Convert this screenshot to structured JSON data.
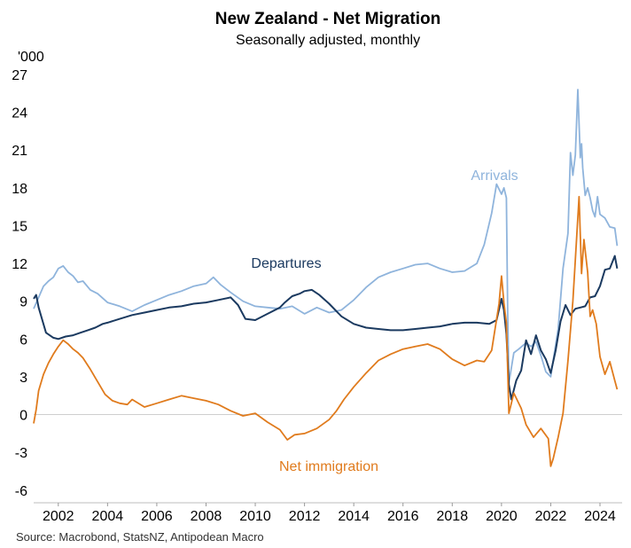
{
  "chart_data": {
    "type": "line",
    "title": "New Zealand - Net Migration",
    "subtitle": "Seasonally adjusted, monthly",
    "ylabel": "'000",
    "source": "Source: Macrobond, StatsNZ, Antipodean Macro",
    "ylim": [
      -7,
      27
    ],
    "yticks": [
      27,
      24,
      21,
      18,
      15,
      12,
      9,
      6,
      3,
      0,
      -3,
      -6
    ],
    "xlim": [
      2001.0,
      2024.9
    ],
    "xticks": [
      2002,
      2004,
      2006,
      2008,
      2010,
      2012,
      2014,
      2016,
      2018,
      2020,
      2022,
      2024
    ],
    "xtick_labels": [
      "2002",
      "2004",
      "2006",
      "2008",
      "2010",
      "2012",
      "2014",
      "2016",
      "2018",
      "2020",
      "2022",
      "2024"
    ],
    "grid": false,
    "zero_line": true,
    "series": [
      {
        "name": "Arrivals",
        "color": "#8fb4dc",
        "x": [
          2001.0,
          2001.2,
          2001.4,
          2001.6,
          2001.8,
          2002.0,
          2002.2,
          2002.4,
          2002.6,
          2002.8,
          2003.0,
          2003.3,
          2003.6,
          2004.0,
          2004.5,
          2005.0,
          2005.5,
          2006.0,
          2006.5,
          2007.0,
          2007.5,
          2008.0,
          2008.3,
          2008.6,
          2009.0,
          2009.5,
          2010.0,
          2010.5,
          2011.0,
          2011.5,
          2012.0,
          2012.5,
          2013.0,
          2013.5,
          2014.0,
          2014.5,
          2015.0,
          2015.5,
          2016.0,
          2016.5,
          2017.0,
          2017.5,
          2018.0,
          2018.5,
          2019.0,
          2019.3,
          2019.6,
          2019.8,
          2020.0,
          2020.1,
          2020.2,
          2020.25,
          2020.3,
          2020.5,
          2020.7,
          2021.0,
          2021.2,
          2021.4,
          2021.6,
          2021.8,
          2022.0,
          2022.1,
          2022.3,
          2022.5,
          2022.7,
          2022.8,
          2022.9,
          2023.0,
          2023.1,
          2023.2,
          2023.25,
          2023.3,
          2023.4,
          2023.5,
          2023.6,
          2023.7,
          2023.8,
          2023.9,
          2024.0,
          2024.2,
          2024.4,
          2024.6,
          2024.7
        ],
        "values": [
          8.4,
          9.3,
          10.2,
          10.6,
          10.9,
          11.6,
          11.8,
          11.3,
          11.0,
          10.5,
          10.6,
          9.9,
          9.6,
          8.9,
          8.6,
          8.2,
          8.7,
          9.1,
          9.5,
          9.8,
          10.2,
          10.4,
          10.9,
          10.3,
          9.7,
          9.0,
          8.6,
          8.5,
          8.4,
          8.6,
          8.0,
          8.5,
          8.1,
          8.3,
          9.1,
          10.1,
          10.9,
          11.3,
          11.6,
          11.9,
          12.0,
          11.6,
          11.3,
          11.4,
          12.0,
          13.5,
          16.0,
          18.3,
          17.5,
          18.0,
          17.2,
          8.5,
          2.5,
          4.9,
          5.2,
          5.7,
          5.4,
          5.8,
          4.7,
          3.4,
          3.0,
          4.3,
          6.8,
          11.6,
          14.4,
          20.8,
          19.0,
          20.6,
          25.8,
          20.4,
          21.5,
          19.6,
          17.4,
          18.0,
          17.2,
          16.2,
          15.7,
          17.3,
          15.9,
          15.6,
          14.9,
          14.8,
          13.4
        ]
      },
      {
        "name": "Departures",
        "color": "#1b3a60",
        "x": [
          2001.0,
          2001.1,
          2001.2,
          2001.5,
          2001.8,
          2002.0,
          2002.3,
          2002.6,
          2002.9,
          2003.2,
          2003.5,
          2003.8,
          2004.0,
          2004.5,
          2005.0,
          2005.5,
          2006.0,
          2006.5,
          2007.0,
          2007.5,
          2008.0,
          2008.5,
          2009.0,
          2009.3,
          2009.6,
          2010.0,
          2010.5,
          2011.0,
          2011.2,
          2011.5,
          2011.8,
          2012.0,
          2012.3,
          2012.6,
          2013.0,
          2013.5,
          2014.0,
          2014.5,
          2015.0,
          2015.5,
          2016.0,
          2016.5,
          2017.0,
          2017.5,
          2018.0,
          2018.5,
          2019.0,
          2019.5,
          2019.8,
          2020.0,
          2020.1,
          2020.2,
          2020.3,
          2020.4,
          2020.6,
          2020.8,
          2021.0,
          2021.2,
          2021.4,
          2021.6,
          2021.8,
          2022.0,
          2022.2,
          2022.4,
          2022.6,
          2022.8,
          2023.0,
          2023.2,
          2023.4,
          2023.6,
          2023.8,
          2024.0,
          2024.2,
          2024.4,
          2024.6,
          2024.7
        ],
        "values": [
          9.2,
          9.5,
          8.5,
          6.5,
          6.1,
          6.0,
          6.2,
          6.3,
          6.5,
          6.7,
          6.9,
          7.2,
          7.3,
          7.6,
          7.9,
          8.1,
          8.3,
          8.5,
          8.6,
          8.8,
          8.9,
          9.1,
          9.3,
          8.7,
          7.6,
          7.5,
          8.0,
          8.5,
          8.9,
          9.4,
          9.6,
          9.8,
          9.9,
          9.5,
          8.8,
          7.8,
          7.2,
          6.9,
          6.8,
          6.7,
          6.7,
          6.8,
          6.9,
          7.0,
          7.2,
          7.3,
          7.3,
          7.2,
          7.5,
          9.2,
          8.3,
          6.4,
          2.4,
          1.2,
          2.7,
          3.5,
          5.9,
          4.8,
          6.3,
          5.1,
          4.4,
          3.3,
          5.1,
          7.4,
          8.7,
          7.9,
          8.4,
          8.5,
          8.6,
          9.3,
          9.4,
          10.2,
          11.5,
          11.6,
          12.6,
          11.6
        ]
      },
      {
        "name": "Net immigration",
        "color": "#e07b1d",
        "x": [
          2001.0,
          2001.1,
          2001.2,
          2001.4,
          2001.6,
          2001.8,
          2002.0,
          2002.2,
          2002.4,
          2002.6,
          2002.8,
          2003.0,
          2003.3,
          2003.6,
          2003.9,
          2004.2,
          2004.5,
          2004.8,
          2005.0,
          2005.5,
          2006.0,
          2006.5,
          2007.0,
          2007.5,
          2008.0,
          2008.5,
          2009.0,
          2009.5,
          2010.0,
          2010.5,
          2011.0,
          2011.3,
          2011.6,
          2012.0,
          2012.5,
          2013.0,
          2013.3,
          2013.6,
          2014.0,
          2014.5,
          2015.0,
          2015.5,
          2016.0,
          2016.5,
          2017.0,
          2017.5,
          2018.0,
          2018.5,
          2019.0,
          2019.3,
          2019.6,
          2019.9,
          2020.0,
          2020.1,
          2020.2,
          2020.3,
          2020.5,
          2020.8,
          2021.0,
          2021.3,
          2021.6,
          2021.9,
          2022.0,
          2022.1,
          2022.3,
          2022.5,
          2022.7,
          2022.9,
          2023.0,
          2023.15,
          2023.25,
          2023.35,
          2023.5,
          2023.6,
          2023.7,
          2023.85,
          2024.0,
          2024.2,
          2024.4,
          2024.6,
          2024.7
        ],
        "values": [
          -0.7,
          0.4,
          1.9,
          3.2,
          4.1,
          4.8,
          5.4,
          5.9,
          5.6,
          5.2,
          4.9,
          4.5,
          3.6,
          2.6,
          1.6,
          1.1,
          0.9,
          0.8,
          1.2,
          0.6,
          0.9,
          1.2,
          1.5,
          1.3,
          1.1,
          0.8,
          0.3,
          -0.1,
          0.1,
          -0.6,
          -1.2,
          -2.0,
          -1.6,
          -1.5,
          -1.1,
          -0.4,
          0.3,
          1.2,
          2.2,
          3.3,
          4.3,
          4.8,
          5.2,
          5.4,
          5.6,
          5.2,
          4.4,
          3.9,
          4.3,
          4.2,
          5.1,
          8.8,
          11.0,
          8.9,
          7.3,
          0.1,
          1.7,
          0.5,
          -0.8,
          -1.8,
          -1.1,
          -1.9,
          -4.1,
          -3.5,
          -1.8,
          0.1,
          4.3,
          9.0,
          12.3,
          17.3,
          11.2,
          13.9,
          11.3,
          7.8,
          8.3,
          7.2,
          4.6,
          3.2,
          4.2,
          2.7,
          2.0
        ]
      }
    ],
    "annotations": [
      {
        "text": "Arrivals",
        "series": "Arrivals"
      },
      {
        "text": "Departures",
        "series": "Departures"
      },
      {
        "text": "Net immigration",
        "series": "Net immigration"
      }
    ]
  }
}
